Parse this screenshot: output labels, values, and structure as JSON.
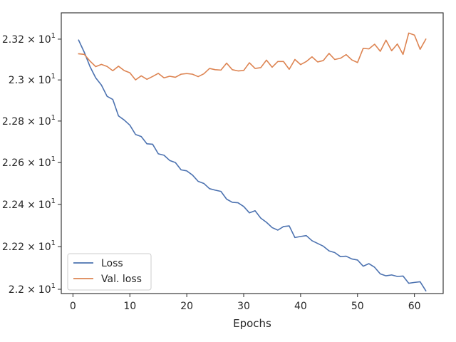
{
  "chart_data": {
    "type": "line",
    "title": "",
    "xlabel": "Epochs",
    "ylabel": "",
    "y_scale": "log",
    "xlim": [
      -2.05,
      65.05
    ],
    "ylim": [
      21.98,
      23.33
    ],
    "x_ticks": [
      0,
      10,
      20,
      30,
      40,
      50,
      60
    ],
    "x_tick_labels": [
      "0",
      "10",
      "20",
      "30",
      "40",
      "50",
      "60"
    ],
    "y_ticks": [
      22.0,
      22.2,
      22.4,
      22.6,
      22.8,
      23.0,
      23.2
    ],
    "y_tick_labels": [
      {
        "mantissa": "2.2",
        "times": "×",
        "base": "10",
        "exp": "1"
      },
      {
        "mantissa": "2.22",
        "times": "×",
        "base": "10",
        "exp": "1"
      },
      {
        "mantissa": "2.24",
        "times": "×",
        "base": "10",
        "exp": "1"
      },
      {
        "mantissa": "2.26",
        "times": "×",
        "base": "10",
        "exp": "1"
      },
      {
        "mantissa": "2.28",
        "times": "×",
        "base": "10",
        "exp": "1"
      },
      {
        "mantissa": "2.3",
        "times": "×",
        "base": "10",
        "exp": "1"
      },
      {
        "mantissa": "2.32",
        "times": "×",
        "base": "10",
        "exp": "1"
      }
    ],
    "grid": false,
    "legend_position": "lower-left",
    "series": [
      {
        "name": "Loss",
        "color": "#4c72b0",
        "x": [
          1,
          2,
          3,
          4,
          5,
          6,
          7,
          8,
          9,
          10,
          11,
          12,
          13,
          14,
          15,
          16,
          17,
          18,
          19,
          20,
          21,
          22,
          23,
          24,
          25,
          26,
          27,
          28,
          29,
          30,
          31,
          32,
          33,
          34,
          35,
          36,
          37,
          38,
          39,
          40,
          41,
          42,
          43,
          44,
          45,
          46,
          47,
          48,
          49,
          50,
          51,
          52,
          53,
          54,
          55,
          56,
          57,
          58,
          59,
          60,
          61,
          62
        ],
        "values": [
          23.195,
          23.135,
          23.065,
          23.01,
          22.975,
          22.92,
          22.905,
          22.825,
          22.805,
          22.78,
          22.735,
          22.725,
          22.69,
          22.688,
          22.642,
          22.635,
          22.61,
          22.6,
          22.565,
          22.56,
          22.54,
          22.51,
          22.5,
          22.475,
          22.468,
          22.462,
          22.425,
          22.41,
          22.408,
          22.39,
          22.36,
          22.37,
          22.335,
          22.315,
          22.29,
          22.278,
          22.295,
          22.298,
          22.243,
          22.248,
          22.252,
          22.228,
          22.215,
          22.202,
          22.18,
          22.172,
          22.153,
          22.155,
          22.142,
          22.137,
          22.108,
          22.12,
          22.103,
          22.072,
          22.063,
          22.067,
          22.06,
          22.062,
          22.028,
          22.032,
          22.035,
          21.993
        ]
      },
      {
        "name": "Val. loss",
        "color": "#dd8452",
        "x": [
          1,
          2,
          3,
          4,
          5,
          6,
          7,
          8,
          9,
          10,
          11,
          12,
          13,
          14,
          15,
          16,
          17,
          18,
          19,
          20,
          21,
          22,
          23,
          24,
          25,
          26,
          27,
          28,
          29,
          30,
          31,
          32,
          33,
          34,
          35,
          36,
          37,
          38,
          39,
          40,
          41,
          42,
          43,
          44,
          45,
          46,
          47,
          48,
          49,
          50,
          51,
          52,
          53,
          54,
          55,
          56,
          57,
          58,
          59,
          60,
          61,
          62
        ],
        "values": [
          23.128,
          23.125,
          23.092,
          23.065,
          23.076,
          23.066,
          23.045,
          23.067,
          23.046,
          23.035,
          23.0,
          23.02,
          23.003,
          23.017,
          23.032,
          23.01,
          23.018,
          23.013,
          23.028,
          23.031,
          23.028,
          23.016,
          23.03,
          23.056,
          23.05,
          23.048,
          23.082,
          23.05,
          23.044,
          23.046,
          23.084,
          23.056,
          23.06,
          23.097,
          23.062,
          23.09,
          23.09,
          23.052,
          23.1,
          23.075,
          23.09,
          23.113,
          23.088,
          23.095,
          23.13,
          23.1,
          23.106,
          23.124,
          23.098,
          23.085,
          23.155,
          23.152,
          23.175,
          23.14,
          23.195,
          23.143,
          23.176,
          23.125,
          23.23,
          23.22,
          23.15,
          23.2
        ]
      }
    ]
  }
}
